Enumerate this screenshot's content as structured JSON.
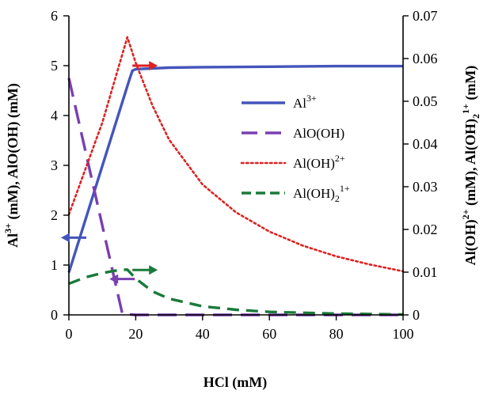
{
  "chart_data": {
    "type": "line",
    "xlabel": "HCl (mM)",
    "ylabel_left": "Al3+ (mM), AlO(OH) (mM)",
    "ylabel_right": "Al(OH)2+ (mM), Al(OH)2 1+ (mM)",
    "x_axis": {
      "min": 0,
      "max": 100,
      "ticks": [
        0,
        20,
        40,
        60,
        80,
        100
      ]
    },
    "y_left": {
      "min": 0,
      "max": 6,
      "ticks": [
        0,
        1,
        2,
        3,
        4,
        5,
        6
      ]
    },
    "y_right": {
      "min": 0,
      "max": 0.07,
      "ticks": [
        "0",
        "0.01",
        "0.02",
        "0.03",
        "0.04",
        "0.05",
        "0.06",
        "0.07"
      ]
    },
    "legend_position": "right-center",
    "series": [
      {
        "name": "Al3+",
        "axis": "left",
        "style": "solid",
        "color": "#4455bb",
        "x": [
          0,
          18,
          19,
          20,
          30,
          40,
          60,
          80,
          100
        ],
        "y": [
          0.85,
          4.7,
          4.9,
          4.93,
          4.96,
          4.97,
          4.98,
          4.99,
          4.99
        ]
      },
      {
        "name": "AlO(OH)",
        "axis": "left",
        "style": "dashed",
        "color": "#7a3fb0",
        "x": [
          0,
          16,
          20,
          40,
          60,
          80,
          100
        ],
        "y": [
          4.75,
          0.02,
          0,
          0,
          0,
          0,
          0
        ]
      },
      {
        "name": "Al(OH)2+",
        "axis": "right",
        "style": "dotted",
        "color": "#dd2222",
        "x": [
          0,
          10,
          17.5,
          20,
          25,
          30,
          40,
          50,
          60,
          70,
          80,
          90,
          100
        ],
        "y": [
          0.0235,
          0.045,
          0.065,
          0.059,
          0.049,
          0.041,
          0.0305,
          0.024,
          0.0195,
          0.0162,
          0.0137,
          0.0118,
          0.0102
        ]
      },
      {
        "name": "Al(OH)21+",
        "axis": "right",
        "style": "dashed",
        "color": "#1a7a3a",
        "x": [
          0,
          5,
          10,
          15,
          17.5,
          20,
          25,
          30,
          40,
          50,
          60,
          70,
          80,
          90,
          100
        ],
        "y": [
          0.0073,
          0.0088,
          0.0098,
          0.0105,
          0.0106,
          0.0085,
          0.0055,
          0.0038,
          0.002,
          0.0012,
          0.0007,
          0.0005,
          0.0003,
          0.0002,
          0.0001
        ]
      }
    ],
    "legend": [
      {
        "base": "Al",
        "sup": "3+",
        "style": "solid",
        "color": "#4455bb"
      },
      {
        "base": "AlO(OH)",
        "style": "dashed",
        "color": "#7a3fb0"
      },
      {
        "base": "Al(OH)",
        "sup": "2+",
        "style": "dotted",
        "color": "#dd2222"
      },
      {
        "base": "Al(OH)",
        "sub": "2",
        "sup": "1+",
        "style": "dashed",
        "color": "#1a7a3a"
      }
    ],
    "axis_arrows": [
      {
        "direction": "left",
        "color": "#4455bb",
        "x": 0,
        "y_left": 1.55
      },
      {
        "direction": "left",
        "color": "#7a3fb0",
        "x": 14.5,
        "y_left": 0.72
      },
      {
        "direction": "right",
        "color": "#dd2222",
        "x": 19,
        "y_left": 5.0
      },
      {
        "direction": "right",
        "color": "#1a7a3a",
        "x": 19,
        "y_left": 0.9
      }
    ]
  }
}
